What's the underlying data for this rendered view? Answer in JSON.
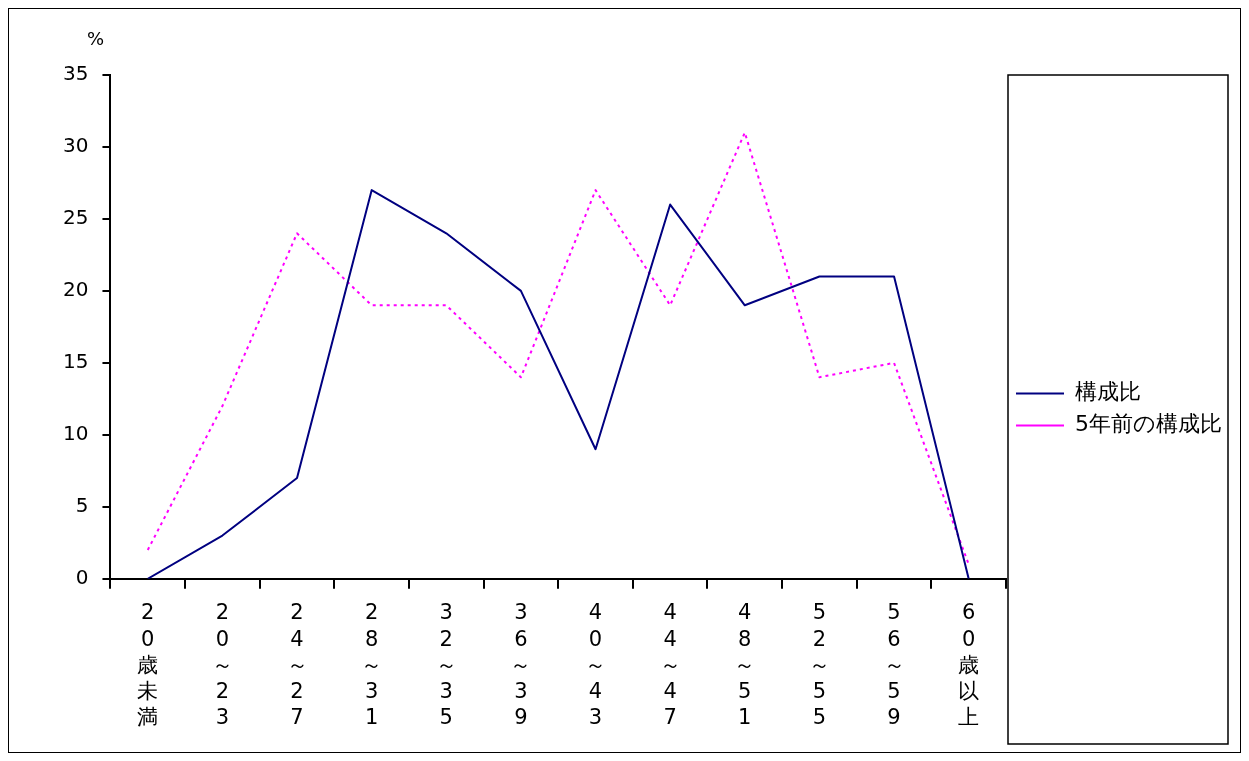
{
  "chart_data": {
    "type": "line",
    "ylabel": "%",
    "categories": [
      "20歳未満",
      "20～23",
      "24～27",
      "28～31",
      "32～35",
      "36～39",
      "40～43",
      "44～47",
      "48～51",
      "52～55",
      "56～59",
      "60歳以上"
    ],
    "series": [
      {
        "name": "構成比",
        "color": "#000080",
        "line_style": "solid",
        "values": [
          0,
          3,
          7,
          27,
          24,
          20,
          9,
          26,
          19,
          21,
          21,
          0
        ]
      },
      {
        "name": "5年前の構成比",
        "color": "#ff00ff",
        "line_style": "dotted",
        "values": [
          2,
          12,
          24,
          19,
          19,
          14,
          27,
          19,
          31,
          14,
          15,
          1
        ]
      }
    ],
    "ylim": [
      0,
      35
    ],
    "yticks": [
      0,
      5,
      10,
      15,
      20,
      25,
      30,
      35
    ],
    "grid": false,
    "legend": "right",
    "marker": "none"
  }
}
